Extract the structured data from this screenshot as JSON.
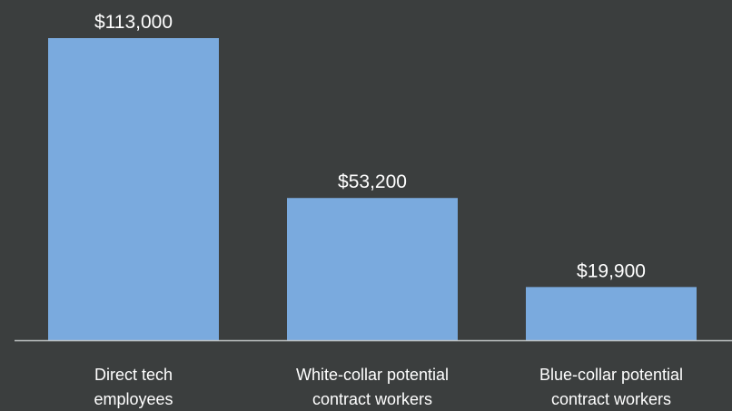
{
  "chart_data": {
    "type": "bar",
    "categories": [
      [
        "Direct tech",
        "employees"
      ],
      [
        "White-collar potential",
        "contract workers"
      ],
      [
        "Blue-collar potential",
        "contract workers"
      ]
    ],
    "values": [
      113000,
      53200,
      19900
    ],
    "value_labels": [
      "$113,000",
      "$53,200",
      "$19,900"
    ],
    "title": "",
    "xlabel": "",
    "ylabel": "",
    "ylim": [
      0,
      113000
    ],
    "grid": false,
    "legend": "none"
  },
  "colors": {
    "background": "#3b3e3e",
    "bar": "#7aaade",
    "axis": "#bfc3c3",
    "text": "#ffffff"
  }
}
